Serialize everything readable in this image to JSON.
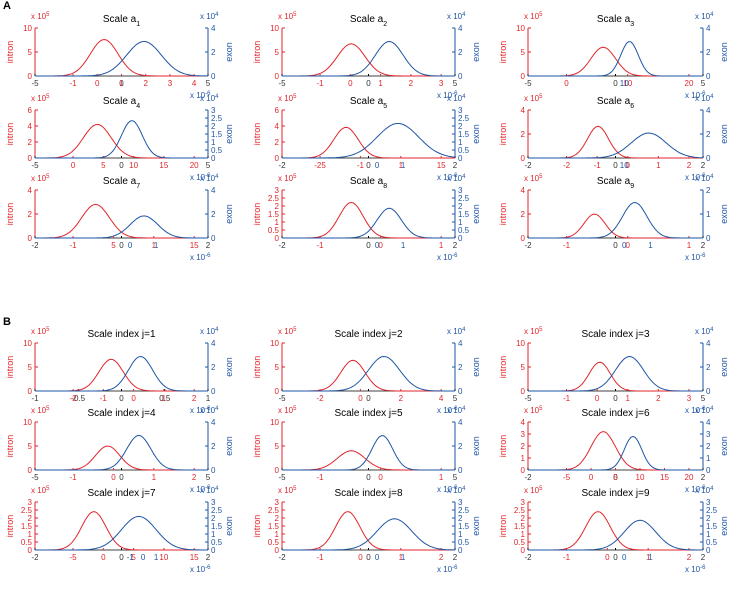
{
  "panels": [
    {
      "letter": "A"
    },
    {
      "letter": "B"
    }
  ],
  "colors": {
    "intron": "#e0262b",
    "exon": "#1f56a6",
    "text": "#000000"
  },
  "chart_data": [
    {
      "type": "line",
      "title": "Scale a",
      "title_sub": "1",
      "ylabel_left": "intron",
      "ylabel_right": "exon",
      "y_left_exp": "x 10",
      "y_left_exp_pow": "5",
      "y_right_exp": "x 10",
      "y_right_exp_pow": "4",
      "x_exp": "x 10",
      "x_exp_pow": "-6",
      "left_ticks": [
        "0",
        "5",
        "10"
      ],
      "right_ticks": [
        "0",
        "2",
        "4"
      ],
      "bottom_ticks_black": [
        "-5",
        "0",
        "5"
      ],
      "bottom_ticks_red": [
        "-1",
        "0",
        "1",
        "2",
        "3",
        "4"
      ],
      "bottom_ticks_blue": [],
      "intron": {
        "center": 0.4,
        "peak": 0.76,
        "width": 0.08
      },
      "exon": {
        "center": 0.63,
        "peak": 0.72,
        "width": 0.1
      }
    },
    {
      "type": "line",
      "title": "Scale a",
      "title_sub": "2",
      "ylabel_left": "intron",
      "ylabel_right": "exon",
      "y_left_exp": "x 10",
      "y_left_exp_pow": "5",
      "y_right_exp": "x 10",
      "y_right_exp_pow": "4",
      "x_exp": "x 10",
      "x_exp_pow": "-6",
      "left_ticks": [
        "0",
        "5",
        "10"
      ],
      "right_ticks": [
        "0",
        "2",
        "4"
      ],
      "bottom_ticks_black": [
        "-5",
        "0",
        "5"
      ],
      "bottom_ticks_red": [
        "-1",
        "0",
        "1",
        "2",
        "3"
      ],
      "bottom_ticks_blue": [],
      "intron": {
        "center": 0.4,
        "peak": 0.67,
        "width": 0.08
      },
      "exon": {
        "center": 0.62,
        "peak": 0.72,
        "width": 0.08
      }
    },
    {
      "type": "line",
      "title": "Scale a",
      "title_sub": "3",
      "ylabel_left": "intron",
      "ylabel_right": "exon",
      "y_left_exp": "x 10",
      "y_left_exp_pow": "5",
      "y_right_exp": "x 10",
      "y_right_exp_pow": "4",
      "x_exp": "x 10",
      "x_exp_pow": "-6",
      "left_ticks": [
        "0",
        "5",
        "10"
      ],
      "right_ticks": [
        "0",
        "2",
        "4"
      ],
      "bottom_ticks_black": [
        "-5",
        "0",
        "5"
      ],
      "bottom_ticks_red": [
        "0",
        "10",
        "20"
      ],
      "bottom_ticks_blue": [
        "10"
      ],
      "intron": {
        "center": 0.43,
        "peak": 0.6,
        "width": 0.07
      },
      "exon": {
        "center": 0.58,
        "peak": 0.72,
        "width": 0.05
      }
    },
    {
      "type": "line",
      "title": "Scale a",
      "title_sub": "4",
      "ylabel_left": "intron",
      "ylabel_right": "exon",
      "y_left_exp": "x 10",
      "y_left_exp_pow": "5",
      "y_right_exp": "x 10",
      "y_right_exp_pow": "4",
      "x_exp": "x 10",
      "x_exp_pow": "-6",
      "left_ticks": [
        "0",
        "2",
        "4",
        "6"
      ],
      "right_ticks": [
        "0",
        "0.5",
        "1",
        "1.5",
        "2",
        "2.5",
        "3"
      ],
      "bottom_ticks_black": [
        "-5",
        "0",
        "5"
      ],
      "bottom_ticks_red": [
        "0",
        "5",
        "10",
        "15",
        "20"
      ],
      "bottom_ticks_blue": [],
      "intron": {
        "center": 0.36,
        "peak": 0.7,
        "width": 0.08
      },
      "exon": {
        "center": 0.56,
        "peak": 0.78,
        "width": 0.06
      }
    },
    {
      "type": "line",
      "title": "Scale a",
      "title_sub": "5",
      "ylabel_left": "intron",
      "ylabel_right": "exon",
      "y_left_exp": "x 10",
      "y_left_exp_pow": "5",
      "y_right_exp": "x 10",
      "y_right_exp_pow": "4",
      "x_exp": "x 10",
      "x_exp_pow": "-6",
      "left_ticks": [
        "0",
        "2",
        "4",
        "6"
      ],
      "right_ticks": [
        "0",
        "0.5",
        "1",
        "1.5",
        "2",
        "2.5",
        "3"
      ],
      "bottom_ticks_black": [
        "-2",
        "0",
        "2"
      ],
      "bottom_ticks_red": [
        "-25",
        "-1",
        "1",
        "15"
      ],
      "bottom_ticks_blue": [
        "0",
        "1"
      ],
      "intron": {
        "center": 0.37,
        "peak": 0.64,
        "width": 0.07
      },
      "exon": {
        "center": 0.67,
        "peak": 0.72,
        "width": 0.12
      }
    },
    {
      "type": "line",
      "title": "Scale a",
      "title_sub": "6",
      "ylabel_left": "intron",
      "ylabel_right": "exon",
      "y_left_exp": "x 10",
      "y_left_exp_pow": "5",
      "y_right_exp": "x 10",
      "y_right_exp_pow": "4",
      "x_exp": "x 10",
      "x_exp_pow": "-6",
      "left_ticks": [
        "0",
        "2",
        "4"
      ],
      "right_ticks": [
        "0",
        "2",
        "4"
      ],
      "bottom_ticks_black": [
        "-2",
        "0",
        "2"
      ],
      "bottom_ticks_red": [
        "-2",
        "-1",
        "0",
        "1",
        "2"
      ],
      "bottom_ticks_blue": [
        "10"
      ],
      "intron": {
        "center": 0.4,
        "peak": 0.66,
        "width": 0.06
      },
      "exon": {
        "center": 0.69,
        "peak": 0.52,
        "width": 0.1
      }
    },
    {
      "type": "line",
      "title": "Scale a",
      "title_sub": "7",
      "ylabel_left": "intron",
      "ylabel_right": "exon",
      "y_left_exp": "x 10",
      "y_left_exp_pow": "5",
      "y_right_exp": "x 10",
      "y_right_exp_pow": "4",
      "x_exp": "x 10",
      "x_exp_pow": "-6",
      "left_ticks": [
        "0",
        "2",
        "4"
      ],
      "right_ticks": [
        "0",
        "2",
        "4"
      ],
      "bottom_ticks_black": [
        "-2",
        "0",
        "2"
      ],
      "bottom_ticks_red": [
        "-1",
        "5",
        "1",
        "15"
      ],
      "bottom_ticks_blue": [
        "0",
        "1"
      ],
      "intron": {
        "center": 0.35,
        "peak": 0.7,
        "width": 0.08
      },
      "exon": {
        "center": 0.63,
        "peak": 0.46,
        "width": 0.08
      }
    },
    {
      "type": "line",
      "title": "Scale a",
      "title_sub": "8",
      "ylabel_left": "intron",
      "ylabel_right": "exon",
      "y_left_exp": "x 10",
      "y_left_exp_pow": "5",
      "y_right_exp": "x 10",
      "y_right_exp_pow": "4",
      "x_exp": "x 10",
      "x_exp_pow": "-6",
      "left_ticks": [
        "0",
        "0.5",
        "1",
        "1.5",
        "2",
        "2.5",
        "3"
      ],
      "right_ticks": [
        "0",
        "0.5",
        "1",
        "1.5",
        "2",
        "2.5",
        "3"
      ],
      "bottom_ticks_black": [
        "-2",
        "0",
        "2"
      ],
      "bottom_ticks_red": [
        "-1",
        "0",
        "1"
      ],
      "bottom_ticks_blue": [
        "0",
        "1"
      ],
      "intron": {
        "center": 0.4,
        "peak": 0.74,
        "width": 0.07
      },
      "exon": {
        "center": 0.62,
        "peak": 0.62,
        "width": 0.07
      }
    },
    {
      "type": "line",
      "title": "Scale a",
      "title_sub": "9",
      "ylabel_left": "intron",
      "ylabel_right": "exon",
      "y_left_exp": "x 10",
      "y_left_exp_pow": "5",
      "y_right_exp": "x 10",
      "y_right_exp_pow": "4",
      "x_exp": "x 10",
      "x_exp_pow": "-6",
      "left_ticks": [
        "0",
        "2",
        "4"
      ],
      "right_ticks": [
        "0",
        "1",
        "2"
      ],
      "bottom_ticks_black": [
        "-2",
        "0",
        "2"
      ],
      "bottom_ticks_red": [
        "-1",
        "0",
        "1"
      ],
      "bottom_ticks_blue": [
        "0",
        "1"
      ],
      "intron": {
        "center": 0.38,
        "peak": 0.5,
        "width": 0.06
      },
      "exon": {
        "center": 0.61,
        "peak": 0.74,
        "width": 0.07
      }
    },
    {
      "type": "line",
      "title": "Scale index j=1",
      "title_sub": "",
      "ylabel_left": "intron",
      "ylabel_right": "exon",
      "y_left_exp": "x 10",
      "y_left_exp_pow": "5",
      "y_right_exp": "x 10",
      "y_right_exp_pow": "4",
      "x_exp": "x 10",
      "x_exp_pow": "-6",
      "left_ticks": [
        "0",
        "5",
        "10"
      ],
      "right_ticks": [
        "0",
        "2",
        "4"
      ],
      "bottom_ticks_black": [
        "-1",
        "-0.5",
        "0",
        "0.5",
        "1"
      ],
      "bottom_ticks_red": [
        "-2",
        "-1",
        "0",
        "1",
        "2"
      ],
      "bottom_ticks_blue": [],
      "intron": {
        "center": 0.44,
        "peak": 0.66,
        "width": 0.07
      },
      "exon": {
        "center": 0.61,
        "peak": 0.72,
        "width": 0.07
      }
    },
    {
      "type": "line",
      "title": "Scale index j=2",
      "title_sub": "",
      "ylabel_left": "intron",
      "ylabel_right": "exon",
      "y_left_exp": "x 10",
      "y_left_exp_pow": "5",
      "y_right_exp": "x 10",
      "y_right_exp_pow": "4",
      "x_exp": "x 10",
      "x_exp_pow": "-6",
      "left_ticks": [
        "0",
        "5",
        "10"
      ],
      "right_ticks": [
        "0",
        "2",
        "4"
      ],
      "bottom_ticks_black": [
        "-5",
        "0",
        "5"
      ],
      "bottom_ticks_red": [
        "-2",
        "0",
        "2",
        "4"
      ],
      "bottom_ticks_blue": [],
      "intron": {
        "center": 0.41,
        "peak": 0.64,
        "width": 0.07
      },
      "exon": {
        "center": 0.59,
        "peak": 0.72,
        "width": 0.09
      }
    },
    {
      "type": "line",
      "title": "Scale index j=3",
      "title_sub": "",
      "ylabel_left": "intron",
      "ylabel_right": "exon",
      "y_left_exp": "x 10",
      "y_left_exp_pow": "5",
      "y_right_exp": "x 10",
      "y_right_exp_pow": "4",
      "x_exp": "x 10",
      "x_exp_pow": "-6",
      "left_ticks": [
        "0",
        "5",
        "10"
      ],
      "right_ticks": [
        "0",
        "2",
        "4"
      ],
      "bottom_ticks_black": [
        "-5",
        "0",
        "5"
      ],
      "bottom_ticks_red": [
        "-1",
        "0",
        "1",
        "2",
        "3"
      ],
      "bottom_ticks_blue": [],
      "intron": {
        "center": 0.41,
        "peak": 0.6,
        "width": 0.06
      },
      "exon": {
        "center": 0.58,
        "peak": 0.72,
        "width": 0.08
      }
    },
    {
      "type": "line",
      "title": "Scale index j=4",
      "title_sub": "",
      "ylabel_left": "intron",
      "ylabel_right": "exon",
      "y_left_exp": "x 10",
      "y_left_exp_pow": "5",
      "y_right_exp": "x 10",
      "y_right_exp_pow": "4",
      "x_exp": "x 10",
      "x_exp_pow": "-6",
      "left_ticks": [
        "0",
        "5",
        "10"
      ],
      "right_ticks": [
        "0",
        "2",
        "4"
      ],
      "bottom_ticks_black": [
        "-5",
        "0",
        "5"
      ],
      "bottom_ticks_red": [
        "-1",
        "0",
        "1",
        "2"
      ],
      "bottom_ticks_blue": [],
      "intron": {
        "center": 0.42,
        "peak": 0.5,
        "width": 0.07
      },
      "exon": {
        "center": 0.6,
        "peak": 0.72,
        "width": 0.07
      }
    },
    {
      "type": "line",
      "title": "Scale index j=5",
      "title_sub": "",
      "ylabel_left": "intron",
      "ylabel_right": "exon",
      "y_left_exp": "x 10",
      "y_left_exp_pow": "5",
      "y_right_exp": "x 10",
      "y_right_exp_pow": "4",
      "x_exp": "x 10",
      "x_exp_pow": "-6",
      "left_ticks": [
        "0",
        "5",
        "10"
      ],
      "right_ticks": [
        "0",
        "2",
        "4"
      ],
      "bottom_ticks_black": [
        "-5",
        "0",
        "5"
      ],
      "bottom_ticks_red": [
        "-1",
        "0",
        "1"
      ],
      "bottom_ticks_blue": [],
      "intron": {
        "center": 0.4,
        "peak": 0.4,
        "width": 0.08
      },
      "exon": {
        "center": 0.58,
        "peak": 0.72,
        "width": 0.06
      }
    },
    {
      "type": "line",
      "title": "Scale index j=6",
      "title_sub": "",
      "ylabel_left": "intron",
      "ylabel_right": "exon",
      "y_left_exp": "x 10",
      "y_left_exp_pow": "5",
      "y_right_exp": "x 10",
      "y_right_exp_pow": "4",
      "x_exp": "x 10",
      "x_exp_pow": "-6",
      "left_ticks": [
        "0",
        "1",
        "2",
        "3",
        "4"
      ],
      "right_ticks": [
        "0",
        "1",
        "2",
        "3",
        "4"
      ],
      "bottom_ticks_black": [
        "-2",
        "0",
        "2"
      ],
      "bottom_ticks_red": [
        "-5",
        "0",
        "5",
        "10",
        "15",
        "20"
      ],
      "bottom_ticks_blue": [],
      "intron": {
        "center": 0.43,
        "peak": 0.8,
        "width": 0.07
      },
      "exon": {
        "center": 0.6,
        "peak": 0.7,
        "width": 0.05
      }
    },
    {
      "type": "line",
      "title": "Scale index j=7",
      "title_sub": "",
      "ylabel_left": "intron",
      "ylabel_right": "exon",
      "y_left_exp": "x 10",
      "y_left_exp_pow": "5",
      "y_right_exp": "x 10",
      "y_right_exp_pow": "4",
      "x_exp": "x 10",
      "x_exp_pow": "-6",
      "left_ticks": [
        "0",
        "0.5",
        "1",
        "1.5",
        "2",
        "2.5",
        "3"
      ],
      "right_ticks": [
        "0",
        "0.5",
        "1",
        "1.5",
        "2",
        "2.5",
        "3"
      ],
      "bottom_ticks_black": [
        "-2",
        "0",
        "2"
      ],
      "bottom_ticks_red": [
        "-5",
        "0",
        "5",
        "10",
        "15"
      ],
      "bottom_ticks_blue": [
        "-1",
        "0",
        "1"
      ],
      "intron": {
        "center": 0.34,
        "peak": 0.8,
        "width": 0.07
      },
      "exon": {
        "center": 0.6,
        "peak": 0.7,
        "width": 0.1
      }
    },
    {
      "type": "line",
      "title": "Scale index j=8",
      "title_sub": "",
      "ylabel_left": "intron",
      "ylabel_right": "exon",
      "y_left_exp": "x 10",
      "y_left_exp_pow": "5",
      "y_right_exp": "x 10",
      "y_right_exp_pow": "4",
      "x_exp": "x 10",
      "x_exp_pow": "-6",
      "left_ticks": [
        "0",
        "0.5",
        "1",
        "1.5",
        "2",
        "2.5",
        "3"
      ],
      "right_ticks": [
        "0",
        "0.5",
        "1",
        "1.5",
        "2",
        "2.5",
        "3"
      ],
      "bottom_ticks_black": [
        "-2",
        "0",
        "2"
      ],
      "bottom_ticks_red": [
        "-1",
        "0",
        "1",
        "2"
      ],
      "bottom_ticks_blue": [
        "0",
        "1"
      ],
      "intron": {
        "center": 0.38,
        "peak": 0.8,
        "width": 0.07
      },
      "exon": {
        "center": 0.65,
        "peak": 0.65,
        "width": 0.1
      }
    },
    {
      "type": "line",
      "title": "Scale index j=9",
      "title_sub": "",
      "ylabel_left": "intron",
      "ylabel_right": "exon",
      "y_left_exp": "x 10",
      "y_left_exp_pow": "5",
      "y_right_exp": "x 10",
      "y_right_exp_pow": "4",
      "x_exp": "x 10",
      "x_exp_pow": "-6",
      "left_ticks": [
        "0",
        "0.5",
        "1",
        "1.5",
        "2",
        "2.5",
        "3"
      ],
      "right_ticks": [
        "0",
        "0.5",
        "1",
        "1.5",
        "2",
        "2.5",
        "3"
      ],
      "bottom_ticks_black": [
        "-2",
        "0",
        "2"
      ],
      "bottom_ticks_red": [
        "-1",
        "0",
        "1",
        "2"
      ],
      "bottom_ticks_blue": [
        "0",
        "1"
      ],
      "intron": {
        "center": 0.4,
        "peak": 0.8,
        "width": 0.07
      },
      "exon": {
        "center": 0.64,
        "peak": 0.62,
        "width": 0.09
      }
    }
  ]
}
